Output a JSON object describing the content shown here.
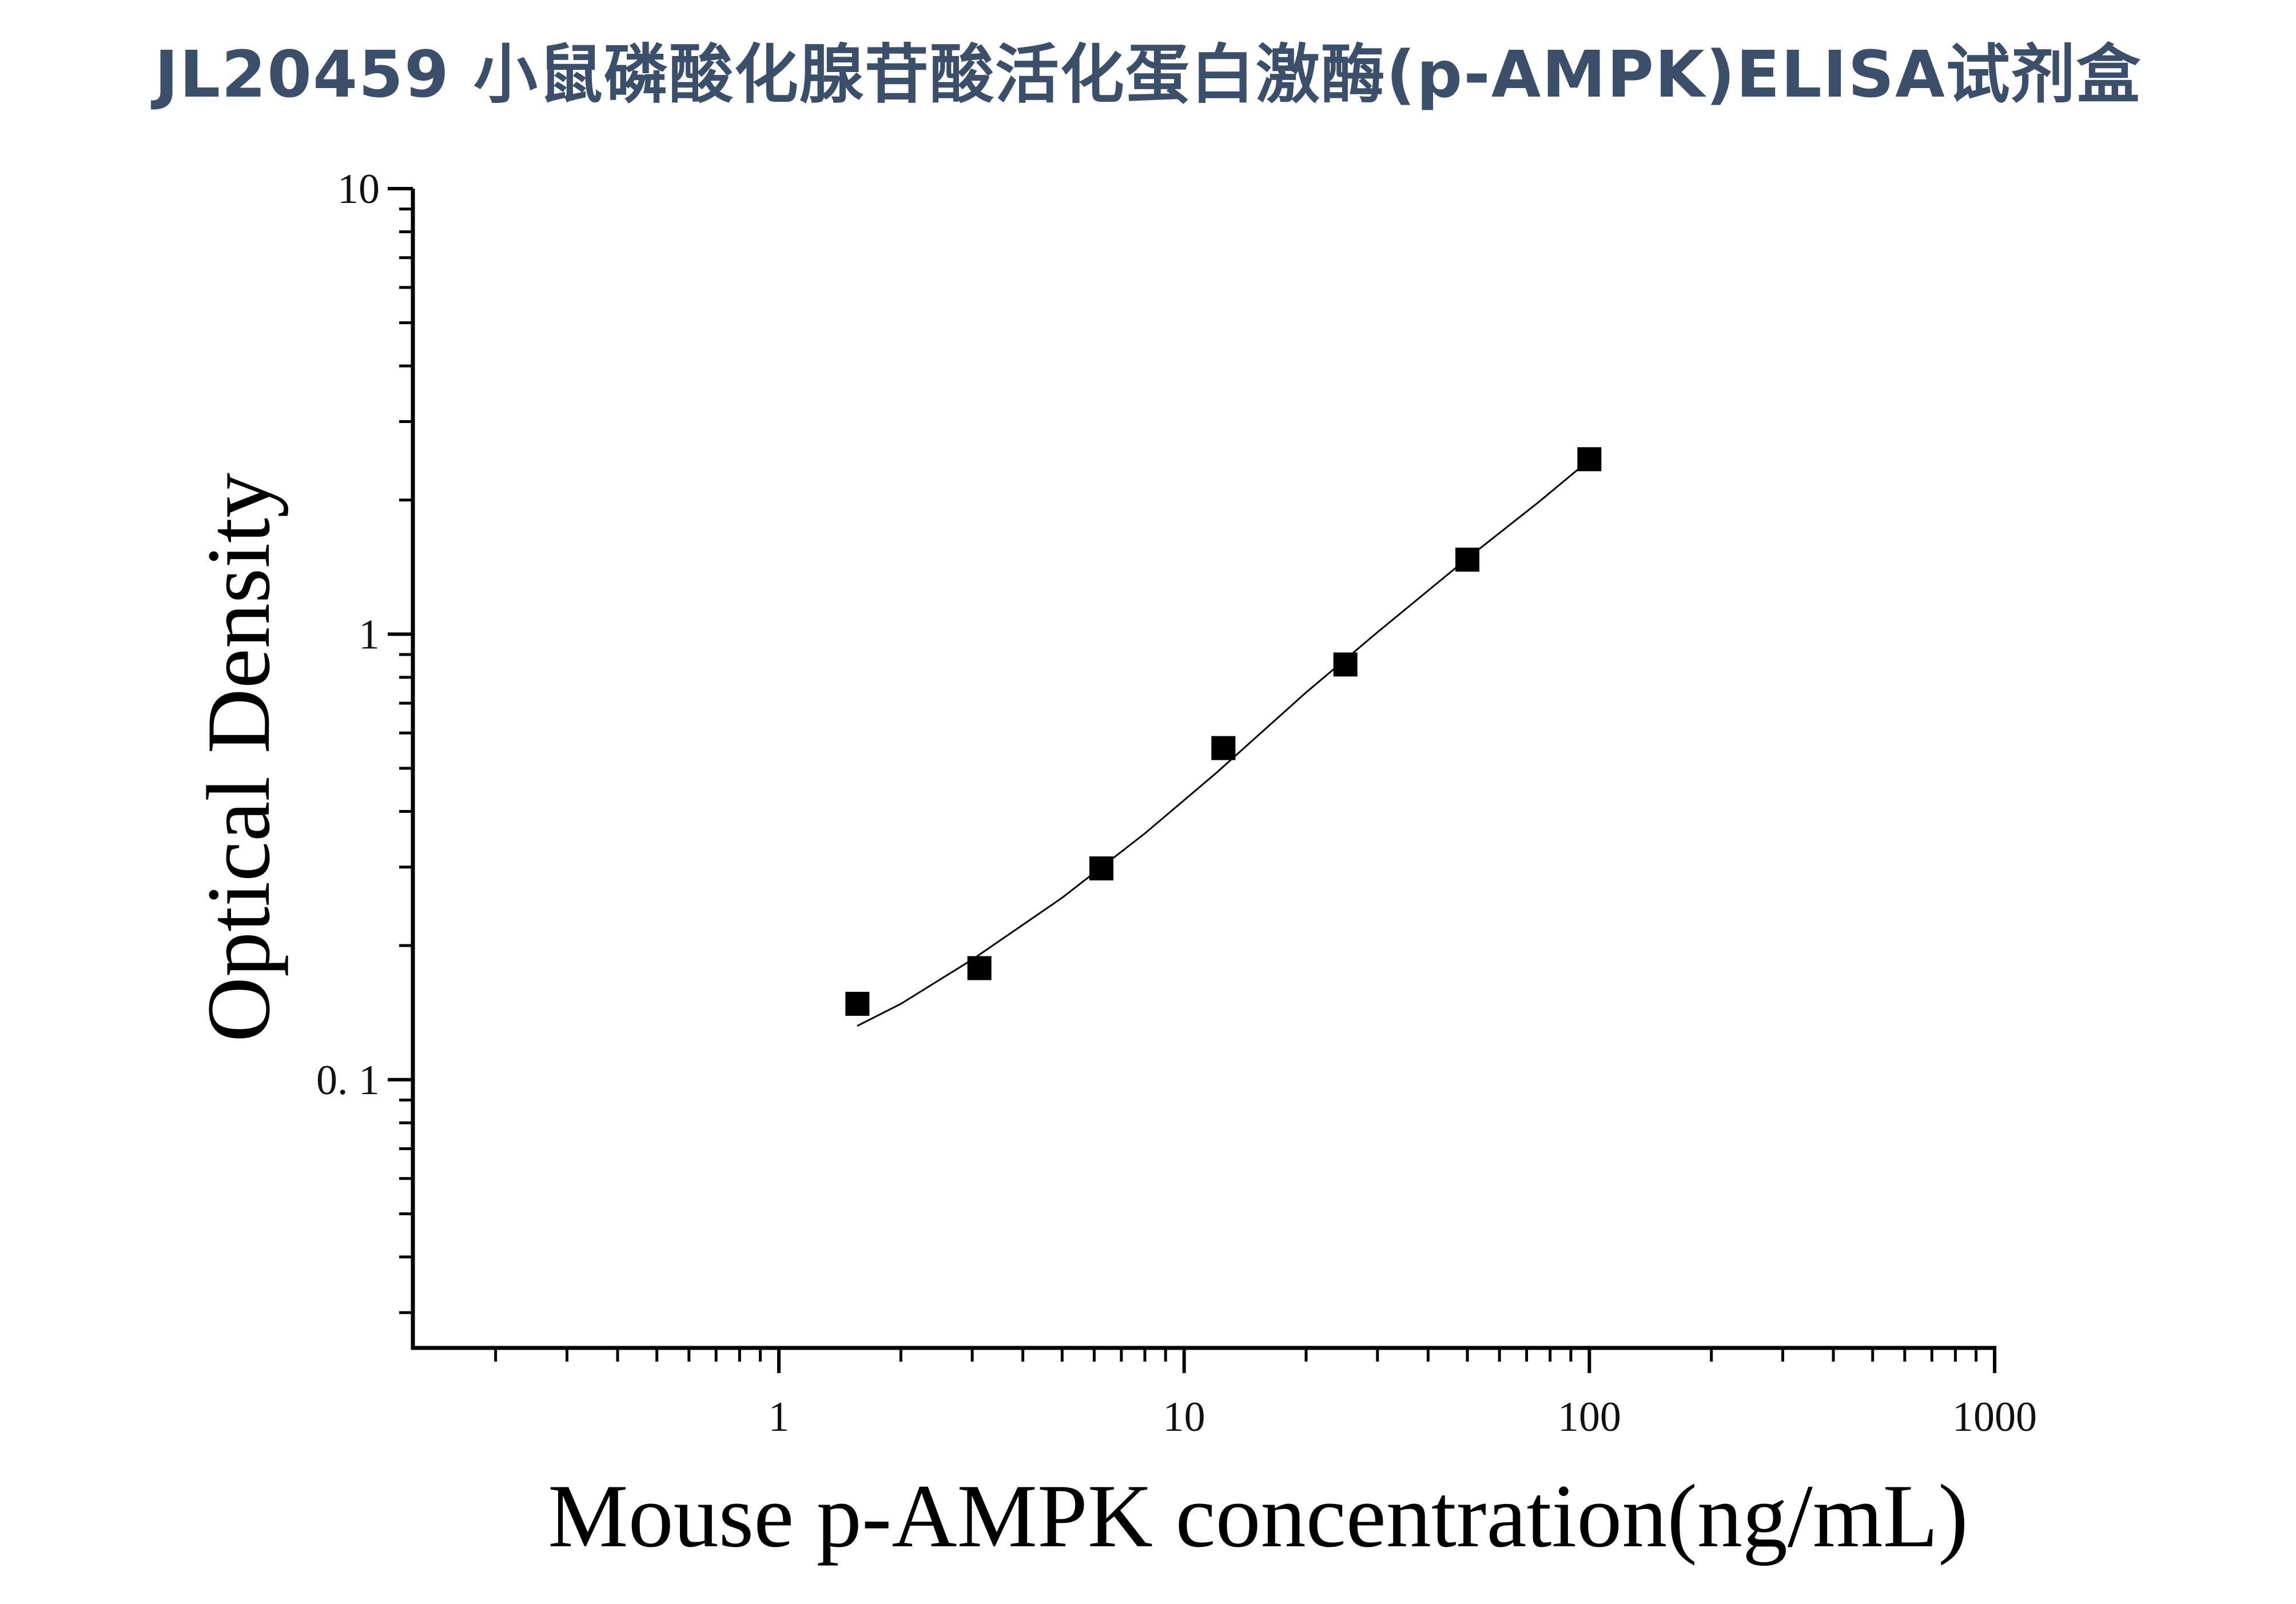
{
  "page": {
    "title": "JL20459 小鼠磷酸化腺苷酸活化蛋白激酶(p-AMPK)ELISA试剂盒"
  },
  "chart_data": {
    "type": "scatter",
    "title": "JL20459 小鼠磷酸化腺苷酸活化蛋白激酶(p-AMPK)ELISA试剂盒",
    "xlabel": "Mouse p-AMPK concentration(ng/mL)",
    "ylabel": "Optical Density",
    "x_scale": "log",
    "y_scale": "log",
    "xlim": [
      0.125,
      1000
    ],
    "ylim": [
      0.025,
      10
    ],
    "x_tick_labels": [
      "1",
      "10",
      "100",
      "1000"
    ],
    "x_tick_values": [
      1,
      10,
      100,
      1000
    ],
    "y_tick_labels": [
      "0. 1",
      "1",
      "10"
    ],
    "y_tick_values": [
      0.1,
      1,
      10
    ],
    "grid": false,
    "legend": "none",
    "marker": "square",
    "marker_color": "#000000",
    "series": [
      {
        "x": [
          1.5625,
          3.125,
          6.25,
          12.5,
          25,
          50,
          100
        ],
        "y": [
          0.148,
          0.178,
          0.298,
          0.555,
          0.855,
          1.47,
          2.47
        ]
      }
    ],
    "fit_curve": {
      "x": [
        1.56,
        2,
        3,
        5,
        8,
        12,
        20,
        30,
        50,
        75,
        100
      ],
      "y": [
        0.132,
        0.148,
        0.186,
        0.256,
        0.357,
        0.488,
        0.74,
        1.01,
        1.48,
        1.98,
        2.46
      ]
    }
  }
}
